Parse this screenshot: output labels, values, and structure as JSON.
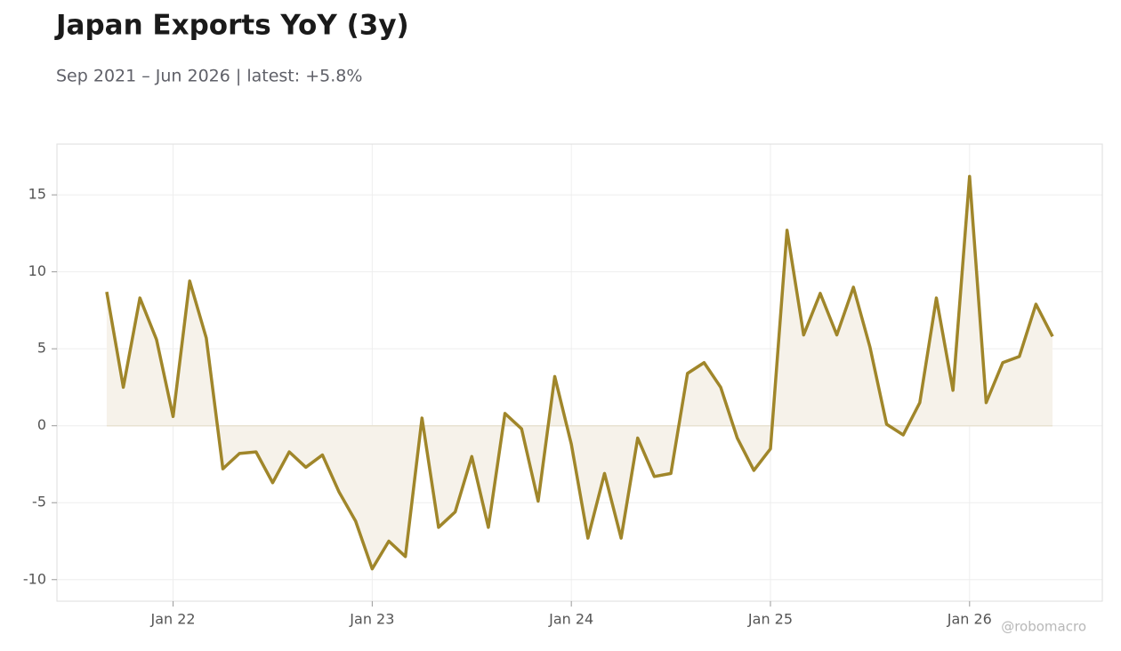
{
  "chart_data": {
    "type": "line",
    "title": "Japan Exports YoY (3y)",
    "subtitle": "Sep 2021 – Jun 2026 | latest: +5.8%",
    "watermark": "@robomacro",
    "x": [
      "2021-09",
      "2021-10",
      "2021-11",
      "2021-12",
      "2022-01",
      "2022-02",
      "2022-03",
      "2022-04",
      "2022-05",
      "2022-06",
      "2022-07",
      "2022-08",
      "2022-09",
      "2022-10",
      "2022-11",
      "2022-12",
      "2023-01",
      "2023-02",
      "2023-03",
      "2023-04",
      "2023-05",
      "2023-06",
      "2023-07",
      "2023-08",
      "2023-09",
      "2023-10",
      "2023-11",
      "2023-12",
      "2024-01",
      "2024-02",
      "2024-03",
      "2024-04",
      "2024-05",
      "2024-06",
      "2024-07",
      "2024-08",
      "2024-09",
      "2024-10",
      "2024-11",
      "2024-12",
      "2025-01",
      "2025-02",
      "2025-03",
      "2025-04",
      "2025-05",
      "2025-06",
      "2025-07",
      "2025-08",
      "2025-09",
      "2025-10",
      "2025-11",
      "2025-12",
      "2026-01",
      "2026-02",
      "2026-03",
      "2026-04",
      "2026-05",
      "2026-06"
    ],
    "series": [
      {
        "color": "#a0862a",
        "fill": "#f6f2ea",
        "values": [
          8.7,
          2.5,
          8.3,
          5.6,
          0.6,
          9.4,
          5.7,
          -2.8,
          -1.8,
          -1.7,
          -3.7,
          -1.7,
          -2.7,
          -1.9,
          -4.3,
          -6.2,
          -9.3,
          -7.5,
          -8.5,
          0.5,
          -6.6,
          -5.6,
          -2.0,
          -6.6,
          0.8,
          -0.2,
          -4.9,
          3.2,
          -1.2,
          -7.3,
          -3.1,
          -7.3,
          -0.8,
          -3.3,
          -3.1,
          3.4,
          4.1,
          2.5,
          -0.8,
          -2.9,
          -1.5,
          12.7,
          5.9,
          8.6,
          5.9,
          9.0,
          5.1,
          0.1,
          -0.6,
          1.5,
          8.3,
          2.3,
          16.2,
          1.5,
          4.1,
          4.5,
          7.9,
          5.8
        ]
      }
    ],
    "xlim": [
      "2021-06",
      "2026-09"
    ],
    "xticks": [
      {
        "value": "2022-01",
        "label": "Jan 22"
      },
      {
        "value": "2023-01",
        "label": "Jan 23"
      },
      {
        "value": "2024-01",
        "label": "Jan 24"
      },
      {
        "value": "2025-01",
        "label": "Jan 25"
      },
      {
        "value": "2026-01",
        "label": "Jan 26"
      }
    ],
    "ylim": [
      -11.4,
      18.3
    ],
    "yticks": [
      -10,
      -5,
      0,
      5,
      10,
      15
    ],
    "grid": true
  }
}
